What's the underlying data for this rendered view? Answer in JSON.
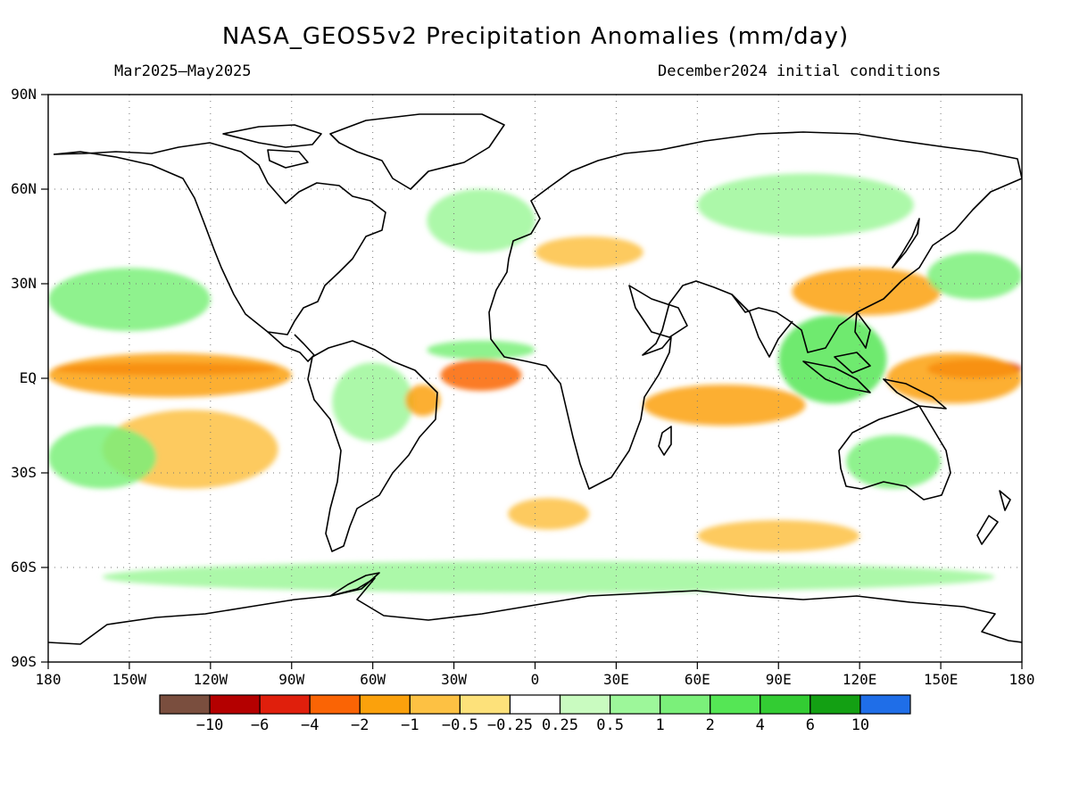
{
  "title": "NASA_GEOS5v2 Precipitation Anomalies (mm/day)",
  "subtitle_left": "Mar2025—May2025",
  "subtitle_right": "December2024 initial conditions",
  "map": {
    "projection": "equirectangular",
    "lon_range": [
      -180,
      180
    ],
    "lat_range": [
      -90,
      90
    ],
    "lat_ticks": [
      "90N",
      "60N",
      "30N",
      "EQ",
      "30S",
      "60S",
      "90S"
    ],
    "lon_ticks": [
      "180",
      "150W",
      "120W",
      "90W",
      "60W",
      "30W",
      "0",
      "30E",
      "60E",
      "90E",
      "120E",
      "150E",
      "180"
    ],
    "gridlines": "dotted",
    "coastline_color": "#000000"
  },
  "colorbar": {
    "colors": [
      "#7a4e3e",
      "#b40000",
      "#e01f0c",
      "#fa6405",
      "#fba10c",
      "#fdc143",
      "#fde17a",
      "#ffffff",
      "#c9fbc0",
      "#9df79a",
      "#7bf07a",
      "#55e655",
      "#33cc33",
      "#13a013",
      "#1f6ee8"
    ],
    "labels": [
      "-10",
      "-6",
      "-4",
      "-2",
      "-1",
      "-0.5",
      "-0.25",
      "0.25",
      "0.5",
      "1",
      "2",
      "4",
      "6",
      "10"
    ]
  },
  "anomaly_regions": [
    {
      "name": "central-pacific-dry-core",
      "level": "-4",
      "lon": [
        -178,
        -95
      ],
      "lat": [
        1,
        5
      ]
    },
    {
      "name": "central-pacific-dry-band",
      "level": "-1",
      "lon": [
        -180,
        -90
      ],
      "lat": [
        -6,
        8
      ]
    },
    {
      "name": "south-pacific-dry",
      "level": "-0.5",
      "lon": [
        -160,
        -95
      ],
      "lat": [
        -35,
        -10
      ]
    },
    {
      "name": "north-pacific-wet",
      "level": "1",
      "lon": [
        -180,
        -120
      ],
      "lat": [
        15,
        35
      ]
    },
    {
      "name": "south-pacific-wet",
      "level": "1",
      "lon": [
        -180,
        -140
      ],
      "lat": [
        -35,
        -15
      ]
    },
    {
      "name": "atlantic-dry",
      "level": "-2",
      "lon": [
        -35,
        -5
      ],
      "lat": [
        -4,
        6
      ]
    },
    {
      "name": "atlantic-itcz-wet",
      "level": "1",
      "lon": [
        -40,
        0
      ],
      "lat": [
        6,
        12
      ]
    },
    {
      "name": "amazon-wet",
      "level": "0.5",
      "lon": [
        -75,
        -45
      ],
      "lat": [
        -20,
        5
      ]
    },
    {
      "name": "brazil-east-dry",
      "level": "-1",
      "lon": [
        -48,
        -35
      ],
      "lat": [
        -12,
        -2
      ]
    },
    {
      "name": "south-atlantic-dry",
      "level": "-0.5",
      "lon": [
        -10,
        20
      ],
      "lat": [
        -48,
        -38
      ]
    },
    {
      "name": "indian-ocean-dry",
      "level": "-1",
      "lon": [
        40,
        100
      ],
      "lat": [
        -15,
        -2
      ]
    },
    {
      "name": "maritime-continent-wet",
      "level": "2",
      "lon": [
        90,
        130
      ],
      "lat": [
        -8,
        20
      ]
    },
    {
      "name": "west-pacific-dry-core",
      "level": "-4",
      "lon": [
        145,
        180
      ],
      "lat": [
        0,
        6
      ]
    },
    {
      "name": "west-pacific-dry-band",
      "level": "-1",
      "lon": [
        130,
        180
      ],
      "lat": [
        -8,
        8
      ]
    },
    {
      "name": "northwest-pacific-dry",
      "level": "-1",
      "lon": [
        95,
        150
      ],
      "lat": [
        20,
        35
      ]
    },
    {
      "name": "north-pacific-east-wet",
      "level": "1",
      "lon": [
        145,
        180
      ],
      "lat": [
        25,
        40
      ]
    },
    {
      "name": "australia-wet",
      "level": "1",
      "lon": [
        115,
        150
      ],
      "lat": [
        -35,
        -18
      ]
    },
    {
      "name": "southern-ocean-wet",
      "level": "0.5",
      "lon": [
        -160,
        170
      ],
      "lat": [
        -68,
        -58
      ]
    },
    {
      "name": "europe-dry",
      "level": "-0.5",
      "lon": [
        0,
        40
      ],
      "lat": [
        35,
        45
      ]
    },
    {
      "name": "siberia-wet",
      "level": "0.5",
      "lon": [
        60,
        140
      ],
      "lat": [
        45,
        65
      ]
    },
    {
      "name": "north-atlantic-wet",
      "level": "0.5",
      "lon": [
        -40,
        0
      ],
      "lat": [
        40,
        60
      ]
    },
    {
      "name": "southern-ocean-dry",
      "level": "-0.5",
      "lon": [
        60,
        120
      ],
      "lat": [
        -55,
        -45
      ]
    }
  ]
}
